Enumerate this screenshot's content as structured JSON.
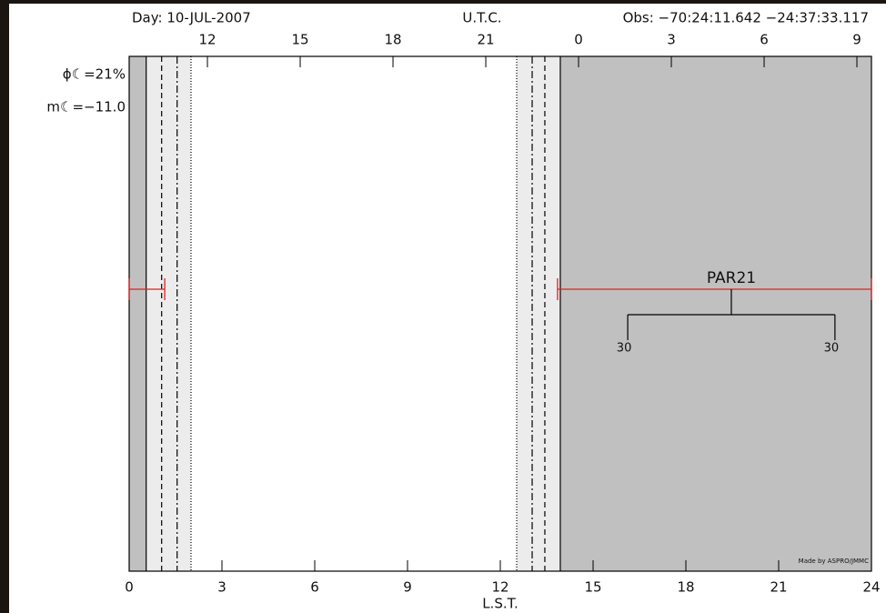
{
  "chart_data": {
    "type": "observability",
    "day": "Day: 10-JUL-2007",
    "x2_label": "U.T.C.",
    "observatory": "Obs: −70:24:11.642 −24:37:33.117",
    "moon_phase": "ϕ☾=21%",
    "moon_magnitude": "m☾=−11.0",
    "xlabel": "L.S.T.",
    "credit": "Made by ASPRO/JMMC",
    "xlim": [
      0,
      24
    ],
    "xticks": [
      0,
      3,
      6,
      9,
      12,
      15,
      18,
      21,
      24
    ],
    "x2lim": [
      9.47,
      33.47
    ],
    "x2ticks": [
      12,
      15,
      18,
      21,
      {
        "value": 24,
        "label": "0"
      },
      {
        "value": 27,
        "label": "3"
      },
      {
        "value": 30,
        "label": "6"
      },
      {
        "value": 33,
        "label": "9"
      }
    ],
    "bands": [
      {
        "start": 0,
        "end": 0.55,
        "color": "#c0c0c0"
      },
      {
        "start": 0.55,
        "end": 2.0,
        "color": "#ececec"
      },
      {
        "start": 12.53,
        "end": 13.94,
        "color": "#ececec"
      },
      {
        "start": 13.94,
        "end": 24,
        "color": "#c0c0c0"
      }
    ],
    "twilight_lines": [
      {
        "x": 0.55,
        "style": "solid"
      },
      {
        "x": 1.05,
        "style": "dashed"
      },
      {
        "x": 1.55,
        "style": "dashdot"
      },
      {
        "x": 2.0,
        "style": "dotted"
      },
      {
        "x": 12.53,
        "style": "dotted"
      },
      {
        "x": 13.03,
        "style": "dashdot"
      },
      {
        "x": 13.44,
        "style": "dashed"
      },
      {
        "x": 13.94,
        "style": "solid"
      }
    ],
    "series": [
      {
        "name": "PAR21",
        "color": "#e02020",
        "intervals": [
          [
            0,
            1.15
          ],
          [
            13.85,
            24
          ]
        ],
        "markers": [
          {
            "x": 16.12,
            "label": "30"
          },
          {
            "x": 22.82,
            "label": "30"
          }
        ]
      }
    ]
  }
}
